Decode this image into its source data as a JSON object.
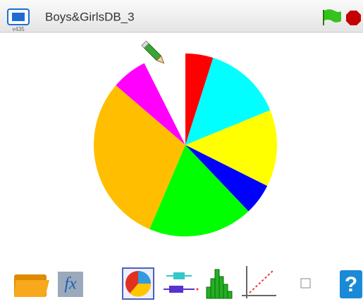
{
  "header": {
    "title": "Boys&GirlsDB_3",
    "version": "v435"
  },
  "chart_data": {
    "type": "pie",
    "values": [
      4.9,
      13.9,
      13.6,
      5.5,
      18.5,
      29.9,
      6.3,
      7.4
    ],
    "colors": [
      "#ff0000",
      "#00ffff",
      "#ffff00",
      "#0000ff",
      "#00ff00",
      "#ffbf00",
      "#ff00ff",
      "#ffffff"
    ]
  }
}
